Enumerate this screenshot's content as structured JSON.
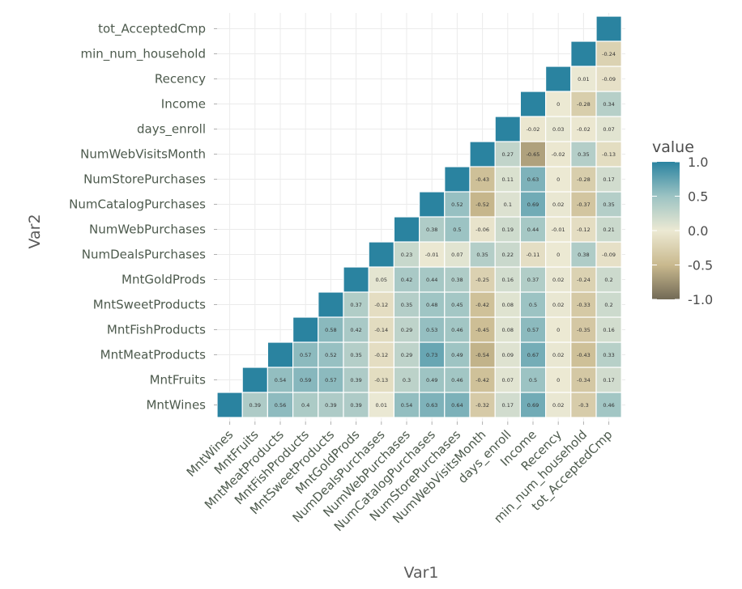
{
  "chart_data": {
    "type": "heatmap",
    "xlabel": "Var1",
    "ylabel": "Var2",
    "variables": [
      "MntWines",
      "MntFruits",
      "MntMeatProducts",
      "MntFishProducts",
      "MntSweetProducts",
      "MntGoldProds",
      "NumDealsPurchases",
      "NumWebPurchases",
      "NumCatalogPurchases",
      "NumStorePurchases",
      "NumWebVisitsMonth",
      "days_enroll",
      "Income",
      "Recency",
      "min_num_household",
      "tot_AcceptedCmp"
    ],
    "x_tick_labels": [
      "MntWines",
      "MntFruits",
      "MntMeatProducts",
      "MntFishProducts",
      "MntSweetProducts",
      "MntGoldProds",
      "NumDealsPurchases",
      "NumWebPurchases",
      "NumCatalogPurchases",
      "NumStorePurchases",
      "NumWebVisitsMonth",
      "days_enroll",
      "Income",
      "Recency",
      "min_num_household",
      "tot_AcceptedCmp"
    ],
    "y_tick_labels": [
      "MntWines",
      "MntFruits",
      "MntMeatProducts",
      "MntFishProducts",
      "MntSweetProducts",
      "MntGoldProds",
      "NumDealsPurchases",
      "NumWebPurchases",
      "NumCatalogPurchases",
      "NumStorePurchases",
      "NumWebVisitsMonth",
      "days_enroll",
      "Income",
      "Recency",
      "min_num_household",
      "tot_AcceptedCmp"
    ],
    "rows": [
      {
        "var": "MntWines",
        "values": [
          1,
          0.39,
          0.56,
          0.4,
          0.39,
          0.39,
          0.01,
          0.54,
          0.63,
          0.64,
          -0.32,
          0.17,
          0.69,
          0.02,
          -0.3,
          0.46
        ]
      },
      {
        "var": "MntFruits",
        "values": [
          1,
          0.54,
          0.59,
          0.57,
          0.39,
          -0.13,
          0.3,
          0.49,
          0.46,
          -0.42,
          0.07,
          0.5,
          0,
          -0.34,
          0.17
        ]
      },
      {
        "var": "MntMeatProducts",
        "values": [
          1,
          0.57,
          0.52,
          0.35,
          -0.12,
          0.29,
          0.73,
          0.49,
          -0.54,
          0.09,
          0.67,
          0.02,
          -0.43,
          0.33
        ]
      },
      {
        "var": "MntFishProducts",
        "values": [
          1,
          0.58,
          0.42,
          -0.14,
          0.29,
          0.53,
          0.46,
          -0.45,
          0.08,
          0.57,
          0,
          -0.35,
          0.16
        ]
      },
      {
        "var": "MntSweetProducts",
        "values": [
          1,
          0.37,
          -0.12,
          0.35,
          0.48,
          0.45,
          -0.42,
          0.08,
          0.5,
          0.02,
          -0.33,
          0.2
        ]
      },
      {
        "var": "MntGoldProds",
        "values": [
          1,
          0.05,
          0.42,
          0.44,
          0.38,
          -0.25,
          0.16,
          0.37,
          0.02,
          -0.24,
          0.2
        ]
      },
      {
        "var": "NumDealsPurchases",
        "values": [
          1,
          0.23,
          -0.01,
          0.07,
          0.35,
          0.22,
          -0.11,
          0,
          0.38,
          -0.09
        ]
      },
      {
        "var": "NumWebPurchases",
        "values": [
          1,
          0.38,
          0.5,
          -0.06,
          0.19,
          0.44,
          -0.01,
          -0.12,
          0.21
        ]
      },
      {
        "var": "NumCatalogPurchases",
        "values": [
          1,
          0.52,
          -0.52,
          0.1,
          0.69,
          0.02,
          -0.37,
          0.35
        ]
      },
      {
        "var": "NumStorePurchases",
        "values": [
          1,
          -0.43,
          0.11,
          0.63,
          0,
          -0.28,
          0.17
        ]
      },
      {
        "var": "NumWebVisitsMonth",
        "values": [
          1,
          0.27,
          -0.65,
          -0.02,
          0.35,
          -0.13
        ]
      },
      {
        "var": "days_enroll",
        "values": [
          1,
          -0.02,
          0.03,
          -0.02,
          0.07
        ]
      },
      {
        "var": "Income",
        "values": [
          1,
          0,
          -0.28,
          0.34
        ]
      },
      {
        "var": "Recency",
        "values": [
          1,
          0.01,
          -0.09
        ]
      },
      {
        "var": "min_num_household",
        "values": [
          1,
          -0.24
        ]
      },
      {
        "var": "tot_AcceptedCmp",
        "values": [
          1
        ]
      }
    ],
    "legend": {
      "title": "value",
      "ticks": [
        "1.0",
        "0.5",
        "0.0",
        "-0.5",
        "-1.0"
      ],
      "tick_values": [
        1.0,
        0.5,
        0.0,
        -0.5,
        -1.0
      ],
      "range": [
        -1,
        1
      ],
      "placement": "right"
    },
    "colors": {
      "low": "#726a56",
      "low_mid": "#c9b98e",
      "mid": "#ece9d3",
      "high_mid": "#9cc3c3",
      "high": "#2a83a0"
    },
    "grid": true
  }
}
